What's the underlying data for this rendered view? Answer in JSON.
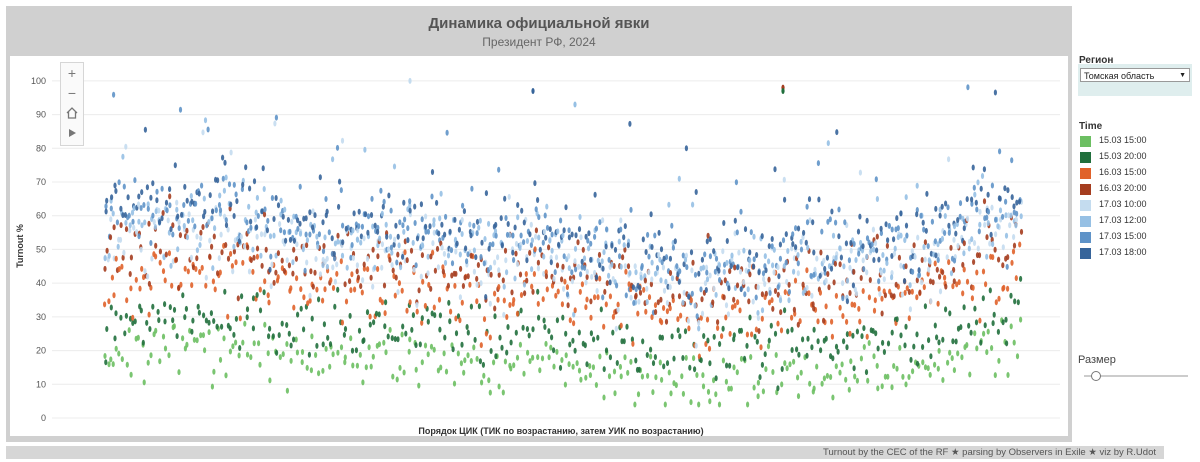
{
  "chart_data": {
    "type": "scatter",
    "title": "Динамика официальной явки",
    "subtitle": "Президент РФ, 2024",
    "xlabel": "Порядок ЦИК (ТИК по возрастанию, затем УИК по возрастанию)",
    "ylabel": "Turnout %",
    "ylim": [
      0,
      105
    ],
    "yticks": [
      0,
      10,
      20,
      30,
      40,
      50,
      60,
      70,
      80,
      90,
      100
    ],
    "n_stations": 300,
    "region_profile": [
      {
        "u": 0.0,
        "v": 28
      },
      {
        "u": 0.08,
        "v": 34
      },
      {
        "u": 0.16,
        "v": 30
      },
      {
        "u": 0.24,
        "v": 26
      },
      {
        "u": 0.32,
        "v": 26
      },
      {
        "u": 0.4,
        "v": 24
      },
      {
        "u": 0.48,
        "v": 26
      },
      {
        "u": 0.56,
        "v": 18
      },
      {
        "u": 0.64,
        "v": 14
      },
      {
        "u": 0.72,
        "v": 20
      },
      {
        "u": 0.8,
        "v": 22
      },
      {
        "u": 0.88,
        "v": 24
      },
      {
        "u": 0.95,
        "v": 30
      },
      {
        "u": 1.0,
        "v": 32
      }
    ],
    "series": [
      {
        "name": "15.03 15:00",
        "color": "#6cbf62",
        "base": 17,
        "spread": 5
      },
      {
        "name": "15.03 20:00",
        "color": "#206f3c",
        "base": 26,
        "spread": 5
      },
      {
        "name": "16.03 15:00",
        "color": "#e0622a",
        "base": 38,
        "spread": 6
      },
      {
        "name": "16.03 20:00",
        "color": "#a53d1f",
        "base": 45,
        "spread": 7
      },
      {
        "name": "17.03 10:00",
        "color": "#c4dcef",
        "base": 49,
        "spread": 8
      },
      {
        "name": "17.03 12:00",
        "color": "#96c0e4",
        "base": 52,
        "spread": 8
      },
      {
        "name": "17.03 15:00",
        "color": "#5f93c8",
        "base": 55,
        "spread": 8
      },
      {
        "name": "17.03 18:00",
        "color": "#36649a",
        "base": 58,
        "spread": 8
      }
    ]
  },
  "filters": {
    "region_label": "Регион",
    "region_value": "Томская область",
    "time_label": "Time",
    "size_label": "Размер"
  },
  "footer": {
    "credits": "Turnout by the CEC of the RF ★ parsing by Observers in Exile ★ viz by R.Udot"
  }
}
